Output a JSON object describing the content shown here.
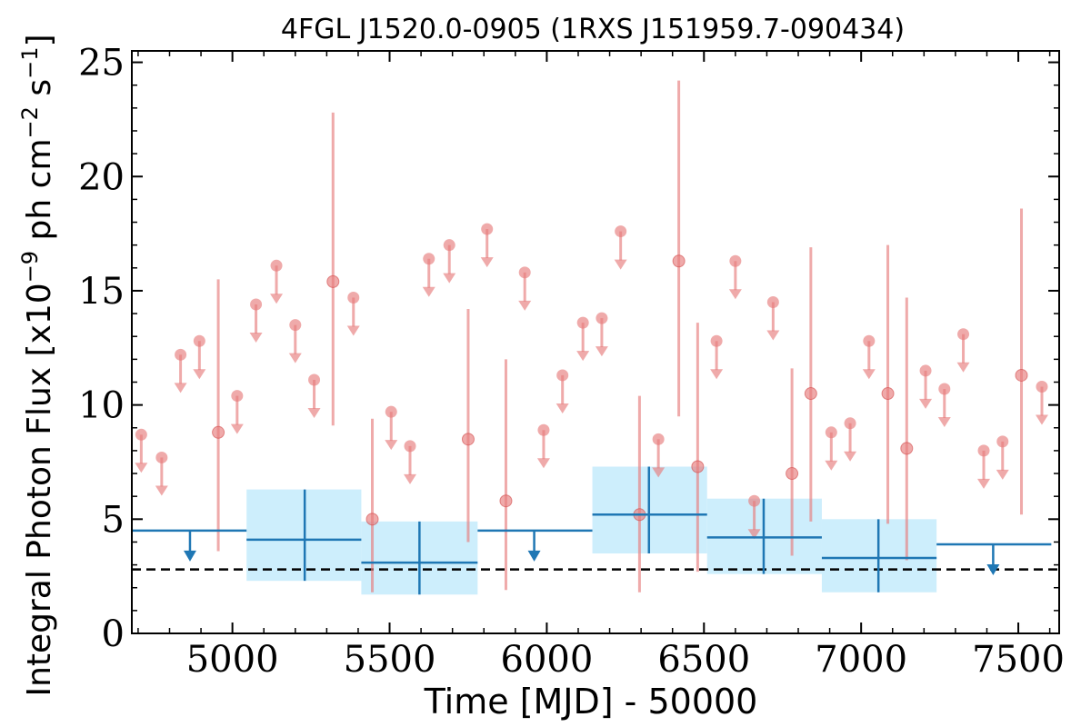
{
  "chart_data": {
    "type": "scatter",
    "title": "4FGL J1520.0-0905 (1RXS J151959.7-090434)",
    "xlabel": "Time [MJD] - 50000",
    "ylabel_main": "Integral Photon Flux [x10",
    "ylabel_exp1": "−9",
    "ylabel_mid": " ph cm",
    "ylabel_exp2": "−2",
    "ylabel_s": " s",
    "ylabel_exp3": "−1",
    "ylabel_end": "]",
    "xlim": [
      4680,
      7630
    ],
    "ylim": [
      0,
      25.5
    ],
    "xticks": [
      5000,
      5500,
      6000,
      6500,
      7000,
      7500
    ],
    "yticks": [
      0,
      5,
      10,
      15,
      20,
      25
    ],
    "xtick_labels": [
      "5000",
      "5500",
      "6000",
      "6500",
      "7000",
      "7500"
    ],
    "ytick_labels": [
      "0",
      "5",
      "10",
      "15",
      "20",
      "25"
    ],
    "reference_line": 2.8,
    "colors": {
      "short_bins": "#e77c7c",
      "long_bins": "#1f77b4",
      "long_band": "#cdeefc",
      "reference": "#000000"
    },
    "series": [
      {
        "kind": "short-bin-detections",
        "points": [
          {
            "x": 4955,
            "y": 8.8,
            "lo": 3.6,
            "hi": 15.5
          },
          {
            "x": 5320,
            "y": 15.4,
            "lo": 9.1,
            "hi": 22.8
          },
          {
            "x": 5445,
            "y": 5.0,
            "lo": 1.8,
            "hi": 9.4
          },
          {
            "x": 5750,
            "y": 8.5,
            "lo": 4.0,
            "hi": 14.2
          },
          {
            "x": 5870,
            "y": 5.8,
            "lo": 1.9,
            "hi": 12.0
          },
          {
            "x": 6295,
            "y": 5.2,
            "lo": 1.8,
            "hi": 10.4
          },
          {
            "x": 6420,
            "y": 16.3,
            "lo": 9.5,
            "hi": 24.2
          },
          {
            "x": 6480,
            "y": 7.3,
            "lo": 2.7,
            "hi": 13.6
          },
          {
            "x": 6780,
            "y": 7.0,
            "lo": 3.4,
            "hi": 11.6
          },
          {
            "x": 6840,
            "y": 10.5,
            "lo": 4.9,
            "hi": 16.9
          },
          {
            "x": 7085,
            "y": 10.5,
            "lo": 4.8,
            "hi": 17.0
          },
          {
            "x": 7145,
            "y": 8.1,
            "lo": 3.2,
            "hi": 14.7
          },
          {
            "x": 7510,
            "y": 11.3,
            "lo": 5.2,
            "hi": 18.6
          }
        ]
      },
      {
        "kind": "short-bin-upper-limits",
        "points": [
          {
            "x": 4710,
            "y": 8.7
          },
          {
            "x": 4775,
            "y": 7.7
          },
          {
            "x": 4835,
            "y": 12.2
          },
          {
            "x": 4895,
            "y": 12.8
          },
          {
            "x": 5015,
            "y": 10.4
          },
          {
            "x": 5075,
            "y": 14.4
          },
          {
            "x": 5140,
            "y": 16.1
          },
          {
            "x": 5200,
            "y": 13.5
          },
          {
            "x": 5260,
            "y": 11.1
          },
          {
            "x": 5385,
            "y": 14.7
          },
          {
            "x": 5505,
            "y": 9.7
          },
          {
            "x": 5565,
            "y": 8.2
          },
          {
            "x": 5625,
            "y": 16.4
          },
          {
            "x": 5690,
            "y": 17.0
          },
          {
            "x": 5810,
            "y": 17.7
          },
          {
            "x": 5930,
            "y": 15.8
          },
          {
            "x": 5990,
            "y": 8.9
          },
          {
            "x": 6050,
            "y": 11.3
          },
          {
            "x": 6115,
            "y": 13.6
          },
          {
            "x": 6175,
            "y": 13.8
          },
          {
            "x": 6235,
            "y": 17.6
          },
          {
            "x": 6355,
            "y": 8.5
          },
          {
            "x": 6540,
            "y": 12.8
          },
          {
            "x": 6600,
            "y": 16.3
          },
          {
            "x": 6660,
            "y": 5.8
          },
          {
            "x": 6720,
            "y": 14.5
          },
          {
            "x": 6905,
            "y": 8.8
          },
          {
            "x": 6965,
            "y": 9.2
          },
          {
            "x": 7025,
            "y": 12.8
          },
          {
            "x": 7205,
            "y": 11.5
          },
          {
            "x": 7265,
            "y": 10.7
          },
          {
            "x": 7325,
            "y": 13.1
          },
          {
            "x": 7390,
            "y": 8.0
          },
          {
            "x": 7450,
            "y": 8.4
          },
          {
            "x": 7575,
            "y": 10.8
          }
        ]
      },
      {
        "kind": "long-bin-detections",
        "points": [
          {
            "x": 5230,
            "x0": 5045,
            "x1": 5410,
            "y": 4.1,
            "lo": 2.3,
            "hi": 6.3
          },
          {
            "x": 5595,
            "x0": 5410,
            "x1": 5780,
            "y": 3.1,
            "lo": 1.7,
            "hi": 4.9
          },
          {
            "x": 6325,
            "x0": 6145,
            "x1": 6510,
            "y": 5.2,
            "lo": 3.5,
            "hi": 7.3
          },
          {
            "x": 6690,
            "x0": 6510,
            "x1": 6875,
            "y": 4.2,
            "lo": 2.6,
            "hi": 5.9
          },
          {
            "x": 7055,
            "x0": 6875,
            "x1": 7240,
            "y": 3.3,
            "lo": 1.8,
            "hi": 5.0
          }
        ]
      },
      {
        "kind": "long-bin-upper-limits",
        "points": [
          {
            "x": 4865,
            "x0": 4680,
            "x1": 5045,
            "y": 4.5
          },
          {
            "x": 5960,
            "x0": 5780,
            "x1": 6145,
            "y": 4.5
          },
          {
            "x": 7420,
            "x0": 7240,
            "x1": 7605,
            "y": 3.9
          }
        ]
      }
    ]
  }
}
